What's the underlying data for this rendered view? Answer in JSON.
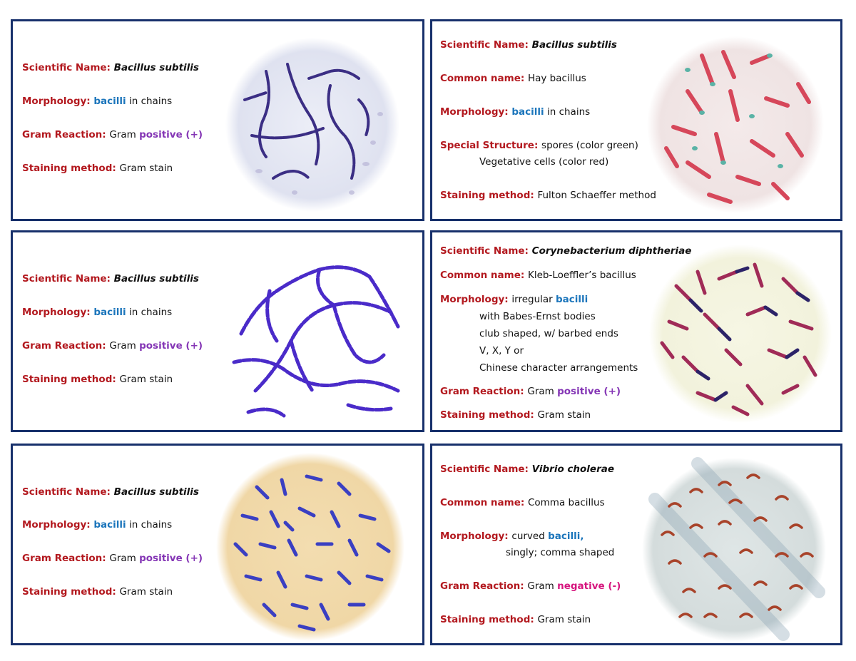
{
  "cards": [
    {
      "name": "card-bacillus-gram-1",
      "lines": [
        {
          "label": "Scientific Name",
          "sep": ": ",
          "value": "Bacillus subtilis",
          "style": "it"
        },
        {
          "label": "Morphology",
          "sep": ": ",
          "value_hl": "bacilli",
          "hl": "blue",
          "value": " in chains"
        },
        {
          "label": "Gram Reaction",
          "sep": ": ",
          "value": "Gram ",
          "value_hl": "positive (+)",
          "hl": "purple",
          "hl_after": true
        },
        {
          "label": "Staining method",
          "sep": ": ",
          "value": "Gram stain"
        }
      ]
    },
    {
      "name": "card-bacillus-spore",
      "lines": [
        {
          "label": "Scientific Name",
          "sep": ": ",
          "value": "Bacillus subtilis",
          "style": "it"
        },
        {
          "label": "Common name",
          "sep": ": ",
          "value": "Hay bacillus"
        },
        {
          "label": "Morphology",
          "sep": ": ",
          "value_hl": "bacilli",
          "hl": "blue",
          "value": " in chains"
        },
        {
          "label": "Special Structure",
          "sep": ": ",
          "value": "spores (color green)"
        },
        {
          "indent": true,
          "value": "Vegetative cells (color red)"
        },
        {
          "label": "Staining method",
          "sep": ": ",
          "value": "Fulton Schaeffer method"
        }
      ]
    },
    {
      "name": "card-bacillus-gram-2",
      "lines": [
        {
          "label": "Scientific Name",
          "sep": ": ",
          "value": "Bacillus subtilis",
          "style": "it"
        },
        {
          "label": "Morphology",
          "sep": ": ",
          "value_hl": "bacilli",
          "hl": "blue",
          "value": " in chains"
        },
        {
          "label": "Gram Reaction",
          "sep": ": ",
          "value": "Gram ",
          "value_hl": "positive (+)",
          "hl": "purple",
          "hl_after": true
        },
        {
          "label": "Staining method",
          "sep": ": ",
          "value": "Gram stain"
        }
      ]
    },
    {
      "name": "card-corynebacterium",
      "lines": [
        {
          "label": "Scientific Name",
          "sep": ": ",
          "value": "Corynebacterium diphtheriae",
          "style": "it"
        },
        {
          "label": "Common name",
          "sep": ": ",
          "value": "Kleb-Loeffler’s bacillus"
        },
        {
          "label": "Morphology",
          "sep": ": ",
          "value": "irregular ",
          "value_hl": "bacilli",
          "hl": "blue",
          "hl_after": true
        },
        {
          "indent": true,
          "value": "with Babes-Ernst bodies"
        },
        {
          "indent": true,
          "value": "club shaped, w/ barbed ends"
        },
        {
          "indent": true,
          "value": "V, X, Y or"
        },
        {
          "indent": true,
          "value": "Chinese character arrangements"
        },
        {
          "label": "Gram Reaction",
          "sep": ": ",
          "value": "Gram ",
          "value_hl": "positive (+)",
          "hl": "purple",
          "hl_after": true
        },
        {
          "label": "Staining method",
          "sep": ": ",
          "value": "Gram stain"
        }
      ]
    },
    {
      "name": "card-bacillus-gram-3",
      "lines": [
        {
          "label": "Scientific Name",
          "sep": ": ",
          "value": "Bacillus subtilis",
          "style": "it"
        },
        {
          "label": "Morphology",
          "sep": ": ",
          "value_hl": "bacilli",
          "hl": "blue",
          "value": " in chains"
        },
        {
          "label": "Gram Reaction",
          "sep": ": ",
          "value": "Gram ",
          "value_hl": "positive (+)",
          "hl": "purple",
          "hl_after": true
        },
        {
          "label": "Staining method",
          "sep": ": ",
          "value": "Gram stain"
        }
      ]
    },
    {
      "name": "card-vibrio",
      "lines": [
        {
          "label": "Scientific Name",
          "sep": ": ",
          "value": "Vibrio cholerae",
          "style": "it"
        },
        {
          "label": "Common name",
          "sep": ": ",
          "value": "Comma bacillus"
        },
        {
          "label": "Morphology",
          "sep": ": ",
          "value": "curved ",
          "value_hl": "bacilli,",
          "hl": "blue",
          "hl_after": true
        },
        {
          "indent": true,
          "value": "singly; comma shaped",
          "wide": true
        },
        {
          "label": "Gram Reaction",
          "sep": ": ",
          "value": "Gram ",
          "value_hl": "negative (-)",
          "hl": "magenta",
          "hl_after": true
        },
        {
          "label": "Staining method",
          "sep": ": ",
          "value": "Gram stain"
        }
      ]
    }
  ],
  "colors": {
    "border": "#17306b",
    "label": "#b3191f",
    "bacilli": "#1b75bb",
    "positive": "#8435b5",
    "negative": "#d6157e"
  }
}
